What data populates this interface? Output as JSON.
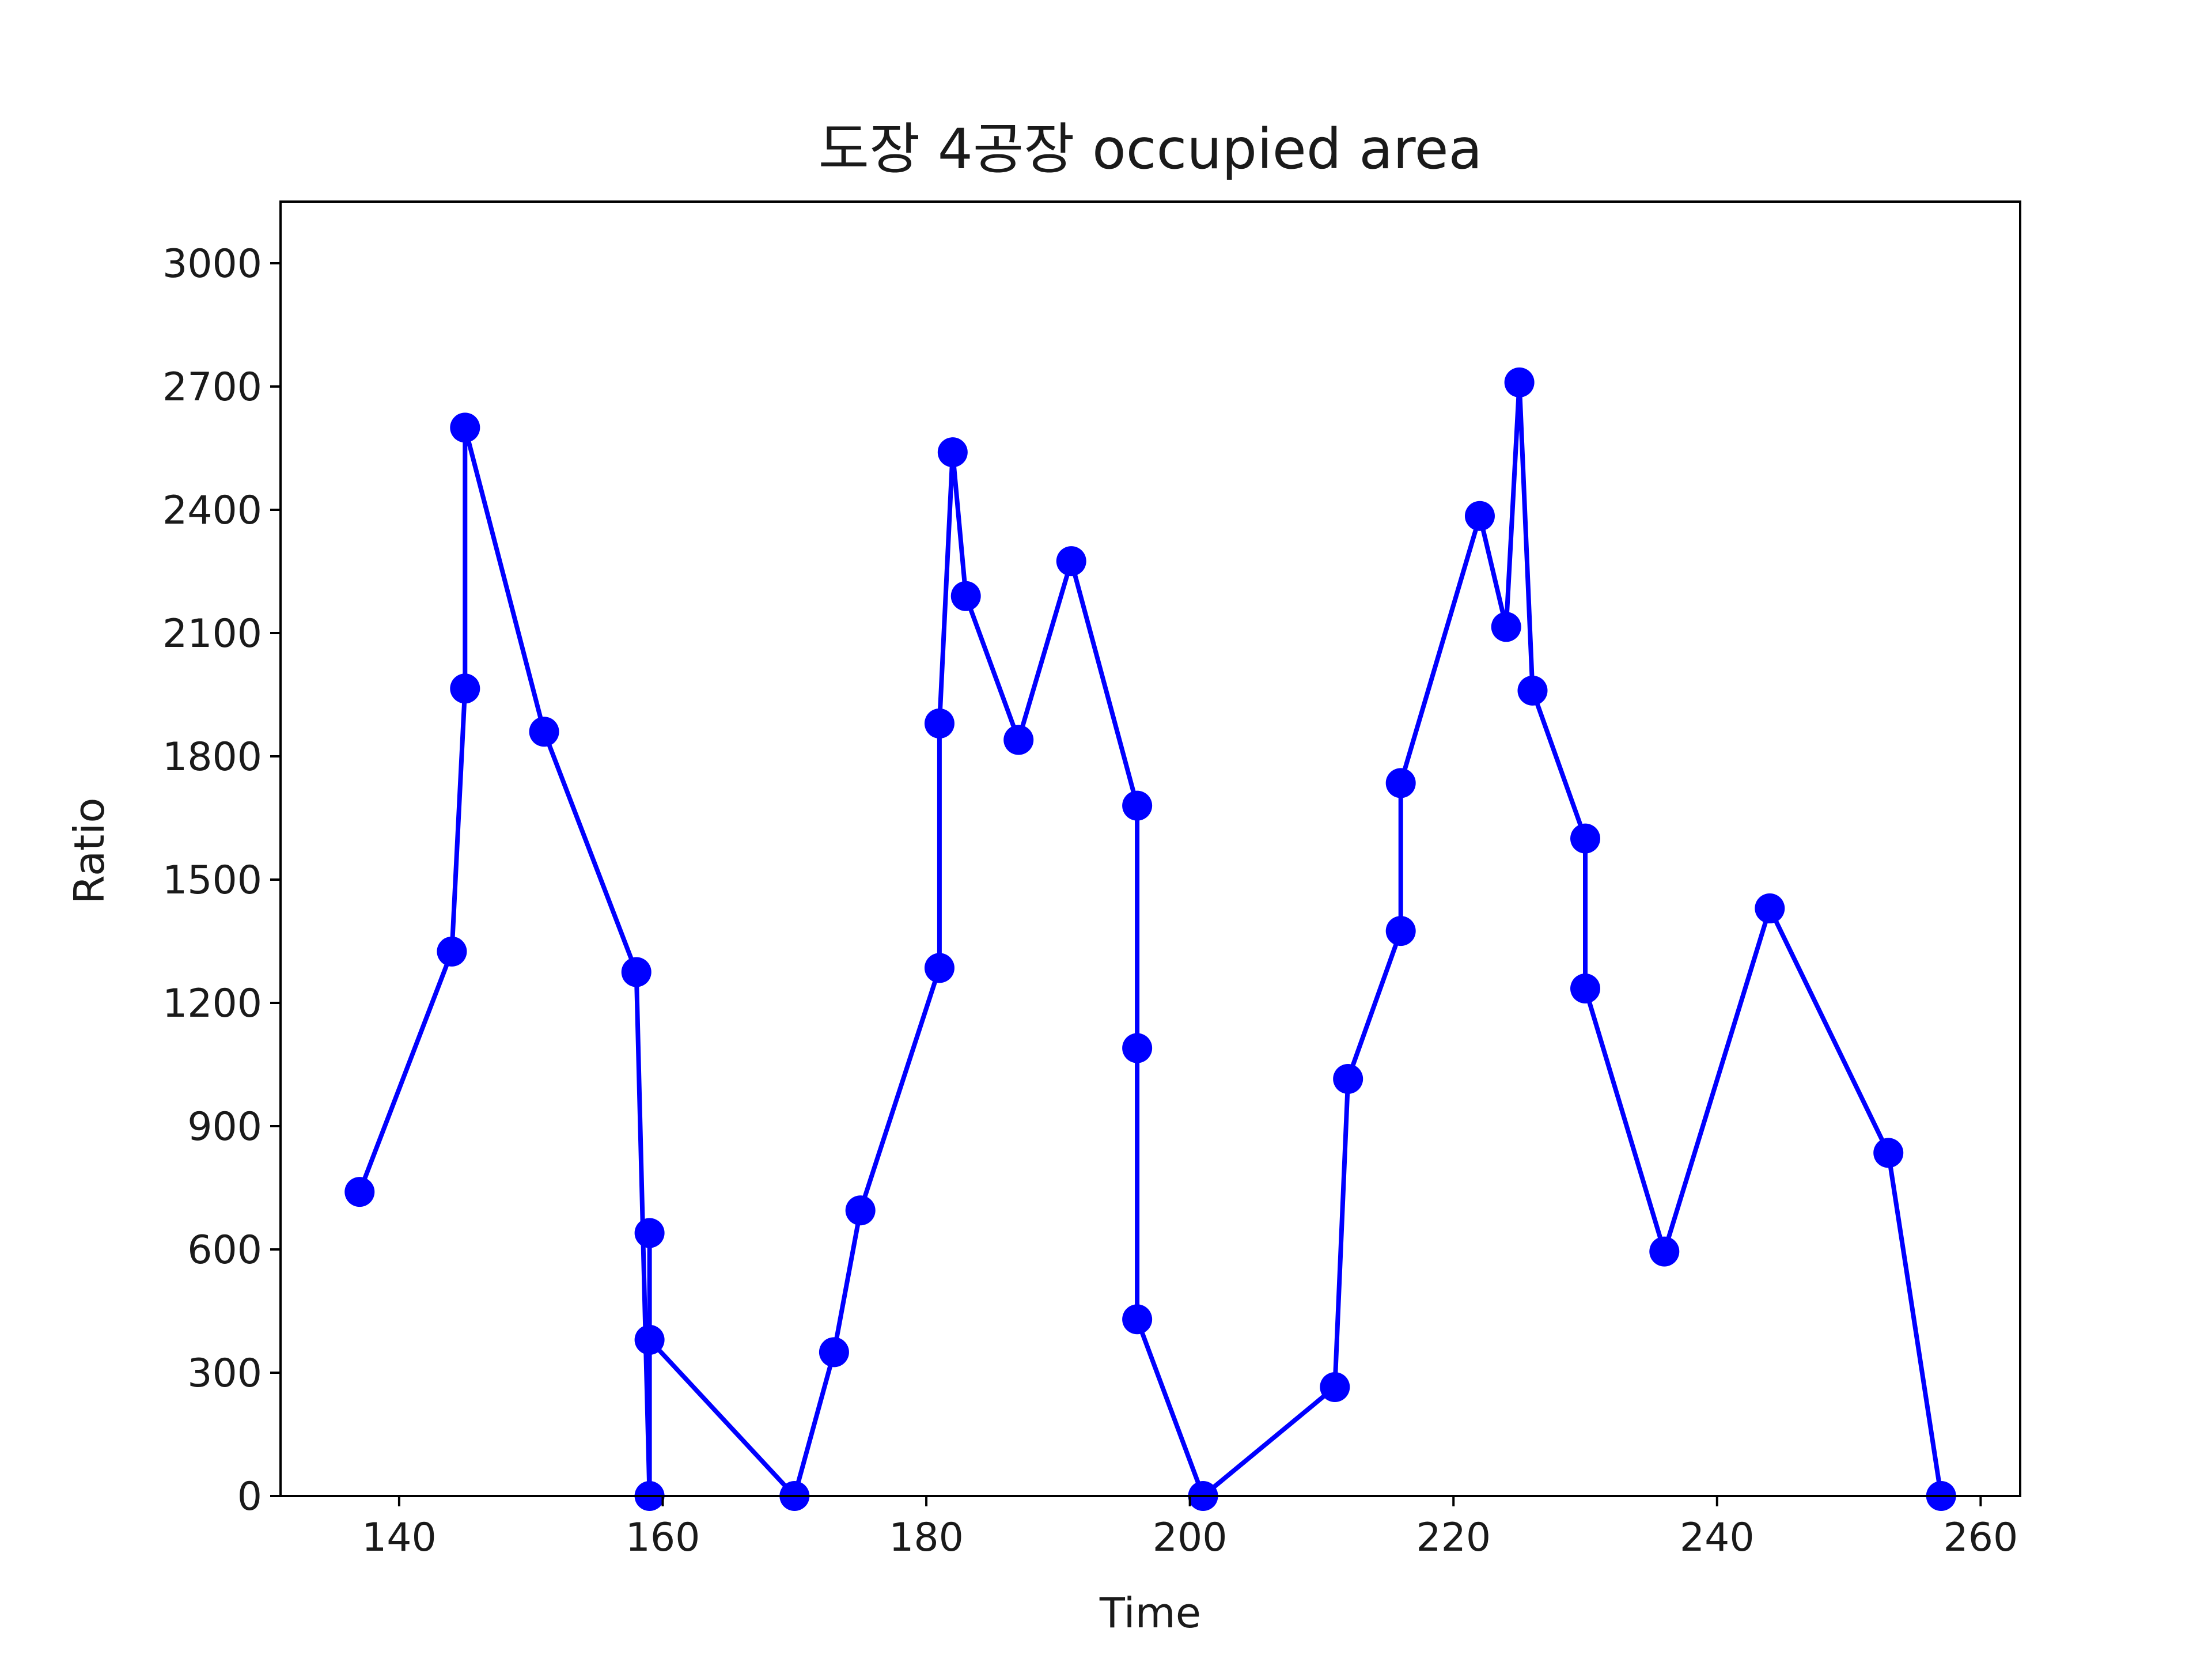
{
  "chart_data": {
    "type": "line",
    "title": "도장 4공장 occupied area",
    "xlabel": "Time",
    "ylabel": "Ratio",
    "xlim": [
      131,
      263
    ],
    "ylim": [
      0,
      3150
    ],
    "xticks": [
      140,
      160,
      180,
      200,
      220,
      240,
      260
    ],
    "yticks": [
      0,
      300,
      600,
      900,
      1200,
      1500,
      1800,
      2100,
      2400,
      2700,
      3000
    ],
    "grid": false,
    "colors": {
      "line": "#0000ff",
      "marker": "#0000ff",
      "axes": "#000000"
    },
    "series": [
      {
        "x": [
          137,
          144,
          145,
          145,
          151,
          158,
          159,
          159,
          159,
          170,
          173,
          175,
          181,
          181,
          182,
          183,
          187,
          191,
          196,
          196,
          196,
          201,
          211,
          212,
          216,
          216,
          222,
          224,
          225,
          226,
          230,
          230,
          236,
          244,
          253,
          257
        ],
        "y": [
          740,
          1325,
          1965,
          2600,
          1860,
          1275,
          0,
          640,
          380,
          0,
          350,
          695,
          1285,
          1880,
          2540,
          2190,
          1840,
          2275,
          1680,
          1090,
          430,
          0,
          265,
          1015,
          1375,
          1735,
          2385,
          2115,
          2710,
          1960,
          1600,
          1235,
          595,
          1430,
          835,
          0
        ]
      }
    ]
  }
}
